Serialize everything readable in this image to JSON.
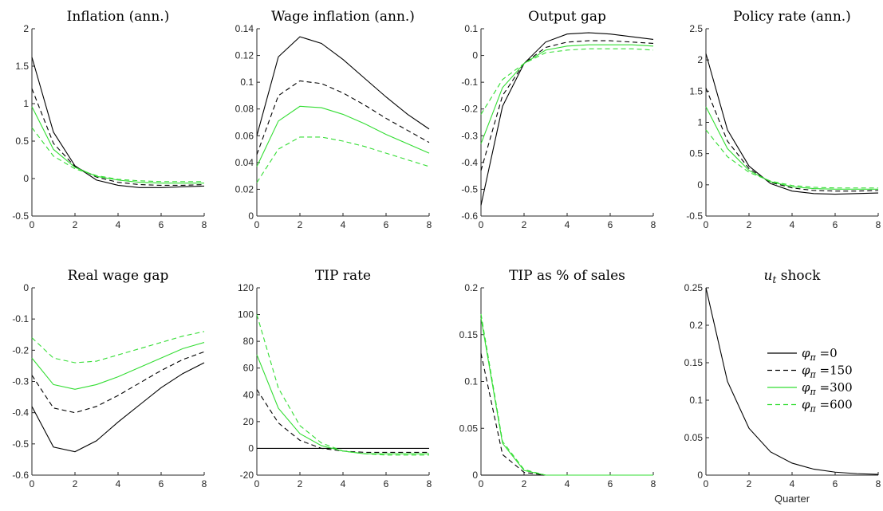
{
  "chart_data": [
    {
      "type": "line",
      "title": "Inflation (ann.)",
      "x": [
        0,
        1,
        2,
        3,
        4,
        5,
        6,
        7,
        8
      ],
      "xlim": [
        0,
        8
      ],
      "xticks": [
        "0",
        "2",
        "4",
        "6",
        "8"
      ],
      "ylim": [
        -0.5,
        2
      ],
      "yticks": [
        "-0.5",
        "0",
        "0.5",
        "1",
        "1.5",
        "2"
      ],
      "series": [
        {
          "name": "φπ =0",
          "values": [
            1.62,
            0.62,
            0.17,
            -0.02,
            -0.09,
            -0.12,
            -0.12,
            -0.11,
            -0.1
          ]
        },
        {
          "name": "φπ =150",
          "values": [
            1.2,
            0.47,
            0.16,
            0.02,
            -0.05,
            -0.08,
            -0.09,
            -0.09,
            -0.08
          ]
        },
        {
          "name": "φπ =300",
          "values": [
            0.96,
            0.39,
            0.15,
            0.03,
            -0.02,
            -0.05,
            -0.06,
            -0.06,
            -0.06
          ]
        },
        {
          "name": "φπ =600",
          "values": [
            0.68,
            0.3,
            0.13,
            0.04,
            -0.01,
            -0.03,
            -0.04,
            -0.04,
            -0.04
          ]
        }
      ]
    },
    {
      "type": "line",
      "title": "Wage inflation (ann.)",
      "x": [
        0,
        1,
        2,
        3,
        4,
        5,
        6,
        7,
        8
      ],
      "xlim": [
        0,
        8
      ],
      "xticks": [
        "0",
        "2",
        "4",
        "6",
        "8"
      ],
      "ylim": [
        0,
        0.14
      ],
      "yticks": [
        "0",
        "0.02",
        "0.04",
        "0.06",
        "0.08",
        "0.1",
        "0.12",
        "0.14"
      ],
      "series": [
        {
          "name": "φπ =0",
          "values": [
            0.06,
            0.119,
            0.134,
            0.129,
            0.117,
            0.103,
            0.089,
            0.076,
            0.065
          ]
        },
        {
          "name": "φπ =150",
          "values": [
            0.046,
            0.09,
            0.101,
            0.099,
            0.092,
            0.083,
            0.073,
            0.064,
            0.055
          ]
        },
        {
          "name": "φπ =300",
          "values": [
            0.037,
            0.071,
            0.082,
            0.081,
            0.076,
            0.069,
            0.061,
            0.054,
            0.047
          ]
        },
        {
          "name": "φπ =600",
          "values": [
            0.025,
            0.05,
            0.059,
            0.059,
            0.056,
            0.052,
            0.047,
            0.042,
            0.037
          ]
        }
      ]
    },
    {
      "type": "line",
      "title": "Output gap",
      "x": [
        0,
        1,
        2,
        3,
        4,
        5,
        6,
        7,
        8
      ],
      "xlim": [
        0,
        8
      ],
      "xticks": [
        "0",
        "2",
        "4",
        "6",
        "8"
      ],
      "ylim": [
        -0.6,
        0.1
      ],
      "yticks": [
        "-0.6",
        "-0.5",
        "-0.4",
        "-0.3",
        "-0.2",
        "-0.1",
        "0",
        "0.1"
      ],
      "series": [
        {
          "name": "φπ =0",
          "values": [
            -0.56,
            -0.19,
            -0.03,
            0.05,
            0.08,
            0.085,
            0.08,
            0.07,
            0.06
          ]
        },
        {
          "name": "φπ =150",
          "values": [
            -0.43,
            -0.15,
            -0.03,
            0.03,
            0.05,
            0.055,
            0.055,
            0.05,
            0.045
          ]
        },
        {
          "name": "φπ =300",
          "values": [
            -0.33,
            -0.12,
            -0.03,
            0.02,
            0.035,
            0.04,
            0.04,
            0.04,
            0.035
          ]
        },
        {
          "name": "φπ =600",
          "values": [
            -0.22,
            -0.09,
            -0.03,
            0.01,
            0.02,
            0.025,
            0.025,
            0.025,
            0.02
          ]
        }
      ]
    },
    {
      "type": "line",
      "title": "Policy rate (ann.)",
      "x": [
        0,
        1,
        2,
        3,
        4,
        5,
        6,
        7,
        8
      ],
      "xlim": [
        0,
        8
      ],
      "xticks": [
        "0",
        "2",
        "4",
        "6",
        "8"
      ],
      "ylim": [
        -0.5,
        2.5
      ],
      "yticks": [
        "-0.5",
        "0",
        "0.5",
        "1",
        "1.5",
        "2",
        "2.5"
      ],
      "series": [
        {
          "name": "φπ =0",
          "values": [
            2.1,
            0.88,
            0.3,
            0.02,
            -0.1,
            -0.14,
            -0.15,
            -0.14,
            -0.13
          ]
        },
        {
          "name": "φπ =150",
          "values": [
            1.55,
            0.7,
            0.26,
            0.04,
            -0.05,
            -0.09,
            -0.1,
            -0.1,
            -0.09
          ]
        },
        {
          "name": "φπ =300",
          "values": [
            1.25,
            0.58,
            0.23,
            0.05,
            -0.03,
            -0.06,
            -0.07,
            -0.07,
            -0.07
          ]
        },
        {
          "name": "φπ =600",
          "values": [
            0.88,
            0.45,
            0.2,
            0.06,
            -0.01,
            -0.04,
            -0.05,
            -0.05,
            -0.05
          ]
        }
      ]
    },
    {
      "type": "line",
      "title": "Real wage gap",
      "x": [
        0,
        1,
        2,
        3,
        4,
        5,
        6,
        7,
        8
      ],
      "xlim": [
        0,
        8
      ],
      "xticks": [
        "0",
        "2",
        "4",
        "6",
        "8"
      ],
      "ylim": [
        -0.6,
        0
      ],
      "yticks": [
        "-0.6",
        "-0.5",
        "-0.4",
        "-0.3",
        "-0.2",
        "-0.1",
        "0"
      ],
      "series": [
        {
          "name": "φπ =0",
          "values": [
            -0.38,
            -0.51,
            -0.525,
            -0.49,
            -0.43,
            -0.375,
            -0.32,
            -0.275,
            -0.24
          ]
        },
        {
          "name": "φπ =150",
          "values": [
            -0.28,
            -0.385,
            -0.4,
            -0.38,
            -0.345,
            -0.305,
            -0.265,
            -0.23,
            -0.205
          ]
        },
        {
          "name": "φπ =300",
          "values": [
            -0.225,
            -0.31,
            -0.325,
            -0.31,
            -0.285,
            -0.255,
            -0.225,
            -0.195,
            -0.175
          ]
        },
        {
          "name": "φπ =600",
          "values": [
            -0.16,
            -0.225,
            -0.24,
            -0.235,
            -0.215,
            -0.195,
            -0.175,
            -0.155,
            -0.14
          ]
        }
      ]
    },
    {
      "type": "line",
      "title": "TIP rate",
      "x": [
        0,
        1,
        2,
        3,
        4,
        5,
        6,
        7,
        8
      ],
      "xlim": [
        0,
        8
      ],
      "xticks": [
        "0",
        "2",
        "4",
        "6",
        "8"
      ],
      "ylim": [
        -20,
        120
      ],
      "yticks": [
        "-20",
        "0",
        "20",
        "40",
        "60",
        "80",
        "100",
        "120"
      ],
      "series": [
        {
          "name": "φπ =0",
          "values": [
            0,
            0,
            0,
            0,
            0,
            0,
            0,
            0,
            0
          ]
        },
        {
          "name": "φπ =150",
          "values": [
            44,
            19,
            6,
            0,
            -2,
            -3,
            -3,
            -3,
            -3
          ]
        },
        {
          "name": "φπ =300",
          "values": [
            70,
            30,
            11,
            2,
            -2,
            -4,
            -4,
            -4,
            -4
          ]
        },
        {
          "name": "φπ =600",
          "values": [
            100,
            45,
            17,
            4,
            -2,
            -4,
            -5,
            -5,
            -5
          ]
        }
      ]
    },
    {
      "type": "line",
      "title": "TIP as % of sales",
      "x": [
        0,
        1,
        2,
        3,
        4,
        5,
        6,
        7,
        8
      ],
      "xlim": [
        0,
        8
      ],
      "xticks": [
        "0",
        "2",
        "4",
        "6",
        "8"
      ],
      "ylim": [
        0,
        0.2
      ],
      "yticks": [
        "0",
        "0.05",
        "0.1",
        "0.15",
        "0.2"
      ],
      "series": [
        {
          "name": "φπ =0",
          "values": [
            0,
            0,
            0,
            0,
            0,
            0,
            0,
            0,
            0
          ]
        },
        {
          "name": "φπ =150",
          "values": [
            0.13,
            0.022,
            0.003,
            0,
            0,
            0,
            0,
            0,
            0
          ]
        },
        {
          "name": "φπ =300",
          "values": [
            0.168,
            0.034,
            0.005,
            0,
            0,
            0,
            0,
            0,
            0
          ]
        },
        {
          "name": "φπ =600",
          "values": [
            0.172,
            0.036,
            0.006,
            0,
            0,
            0,
            0,
            0,
            0
          ]
        }
      ]
    },
    {
      "type": "line",
      "title": "u",
      "title_sub": "t",
      "title_rest": " shock",
      "x": [
        0,
        1,
        2,
        3,
        4,
        5,
        6,
        7,
        8
      ],
      "xlim": [
        0,
        8
      ],
      "xticks": [
        "0",
        "2",
        "4",
        "6",
        "8"
      ],
      "xlabel": "Quarter",
      "ylim": [
        0,
        0.25
      ],
      "yticks": [
        "0",
        "0.05",
        "0.1",
        "0.15",
        "0.2",
        "0.25"
      ],
      "series": [
        {
          "values": [
            0.25,
            0.125,
            0.0625,
            0.031,
            0.016,
            0.008,
            0.004,
            0.002,
            0.001
          ]
        }
      ]
    }
  ],
  "legend": {
    "placement": "inside panel 8, right",
    "entries": [
      {
        "symbol": "φ",
        "sub": "π",
        "value": " =0",
        "color": "#000000",
        "dash": "solid"
      },
      {
        "symbol": "φ",
        "sub": "π",
        "value": " =150",
        "color": "#000000",
        "dash": "dashed"
      },
      {
        "symbol": "φ",
        "sub": "π",
        "value": " =300",
        "color": "#33dd33",
        "dash": "solid"
      },
      {
        "symbol": "φ",
        "sub": "π",
        "value": " =600",
        "color": "#33dd33",
        "dash": "dashed"
      }
    ]
  },
  "style": {
    "series_colors": [
      "#000000",
      "#000000",
      "#33dd33",
      "#33dd33"
    ],
    "series_dash": [
      "solid",
      "dashed",
      "solid",
      "dashed"
    ]
  }
}
